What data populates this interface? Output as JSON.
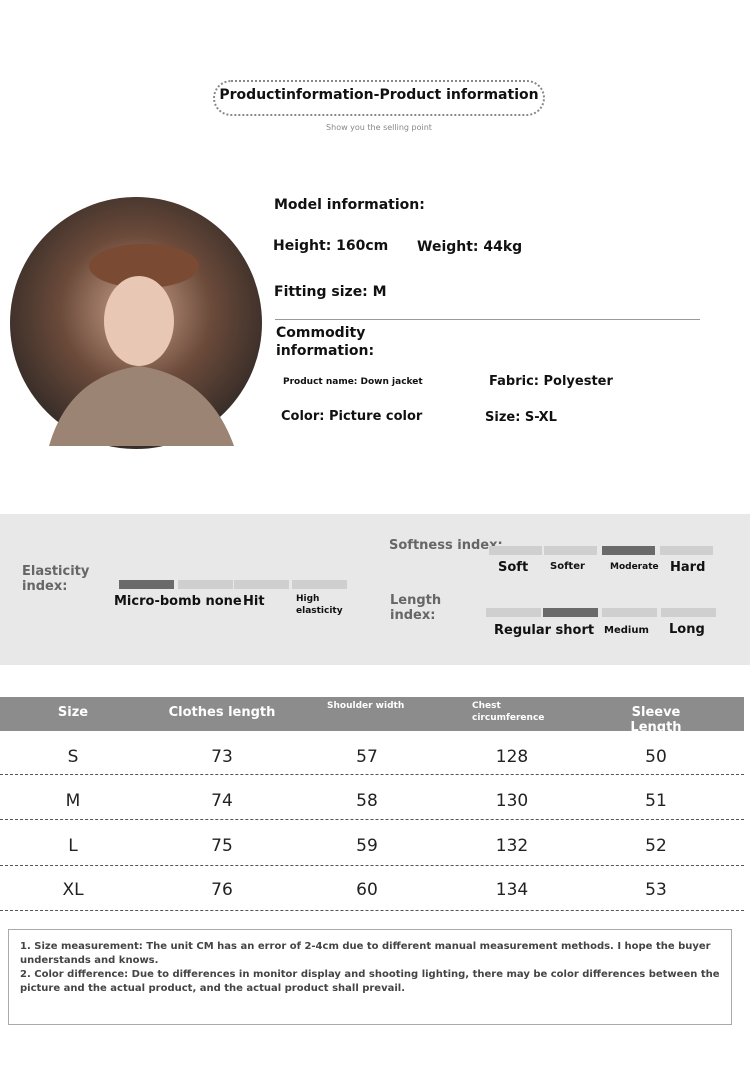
{
  "header": {
    "title": "Productinformation-Product information",
    "subtitle": "Show you the selling point"
  },
  "model": {
    "heading": "Model information:",
    "height": "Height: 160cm",
    "weight": "Weight: 44kg",
    "fitting": "Fitting size: M"
  },
  "commodity": {
    "heading": "Commodity information:",
    "product_name": "Product name: Down jacket",
    "fabric": "Fabric: Polyester",
    "color": "Color: Picture color",
    "size": "Size: S-XL"
  },
  "indices": {
    "elasticity": {
      "label": "Elasticity index:",
      "options": [
        "Micro-bomb none",
        "Hit",
        "High elasticity"
      ],
      "active": 0
    },
    "softness": {
      "label": "Softness index:",
      "options": [
        "Soft",
        "Softer",
        "Moderate",
        "Hard"
      ],
      "active": 2
    },
    "length": {
      "label": "Length index:",
      "options": [
        "Regular short",
        "Medium",
        "Long"
      ],
      "active": 1
    }
  },
  "table": {
    "headers": [
      "Size",
      "Clothes length",
      "Shoulder width",
      "Chest circumference",
      "Sleeve Length"
    ],
    "rows": [
      [
        "S",
        "73",
        "57",
        "128",
        "50"
      ],
      [
        "M",
        "74",
        "58",
        "130",
        "51"
      ],
      [
        "L",
        "75",
        "59",
        "132",
        "52"
      ],
      [
        "XL",
        "76",
        "60",
        "134",
        "53"
      ]
    ]
  },
  "notes": [
    "1. Size measurement: The unit CM has an error of 2-4cm due to different manual measurement methods. I hope the buyer understands and knows.",
    "2. Color difference: Due to differences in monitor display and shooting lighting, there may be color differences between the picture and the actual product, and the actual product shall prevail."
  ]
}
